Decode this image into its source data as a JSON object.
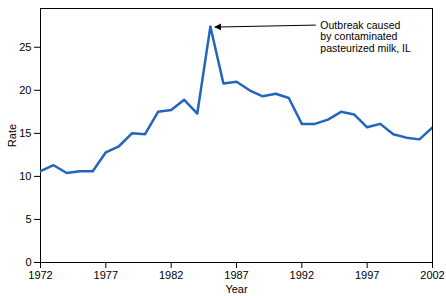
{
  "chart_data": {
    "type": "line",
    "x_label": "Year",
    "y_label": "Rate",
    "x": [
      1972,
      1973,
      1974,
      1975,
      1976,
      1977,
      1978,
      1979,
      1980,
      1981,
      1982,
      1983,
      1984,
      1985,
      1986,
      1987,
      1988,
      1989,
      1990,
      1991,
      1992,
      1993,
      1994,
      1995,
      1996,
      1997,
      1998,
      1999,
      2000,
      2001,
      2002
    ],
    "values": [
      10.6,
      11.3,
      10.4,
      10.6,
      10.6,
      12.8,
      13.5,
      15.0,
      14.9,
      17.5,
      17.7,
      18.9,
      17.3,
      27.4,
      20.8,
      21.0,
      20.0,
      19.3,
      19.6,
      19.1,
      16.1,
      16.1,
      16.6,
      17.5,
      17.2,
      15.7,
      16.1,
      14.9,
      14.5,
      14.3,
      15.7
    ],
    "color": "#2266bb",
    "xlim": [
      1972,
      2002
    ],
    "xticks": [
      1972,
      1977,
      1982,
      1987,
      1992,
      1997,
      2002
    ],
    "ylim": [
      0,
      29.5
    ],
    "yticks": [
      0,
      5,
      10,
      15,
      20,
      25
    ],
    "grid": false,
    "annotations": [
      {
        "text": "Outbreak caused\nby contaminated\npasteurized milk, IL",
        "x": 1985,
        "y": 27.4
      }
    ]
  }
}
